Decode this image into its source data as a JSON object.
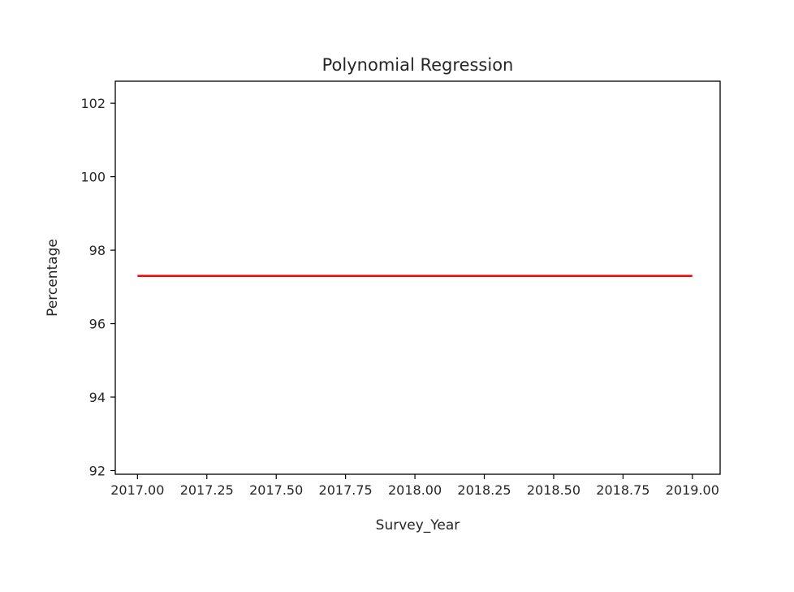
{
  "chart_data": {
    "type": "line",
    "title": "Polynomial Regression",
    "xlabel": "Survey_Year",
    "ylabel": "Percentage",
    "xlim": [
      2016.92,
      2019.1
    ],
    "ylim": [
      91.9,
      102.6
    ],
    "x_ticks": [
      2017.0,
      2017.25,
      2017.5,
      2017.75,
      2018.0,
      2018.25,
      2018.5,
      2018.75,
      2019.0
    ],
    "x_tick_labels": [
      "2017.00",
      "2017.25",
      "2017.50",
      "2017.75",
      "2018.00",
      "2018.25",
      "2018.50",
      "2018.75",
      "2019.00"
    ],
    "y_ticks": [
      92,
      94,
      96,
      98,
      100,
      102
    ],
    "y_tick_labels": [
      "92",
      "94",
      "96",
      "98",
      "100",
      "102"
    ],
    "grid": false,
    "series": [
      {
        "color": "#ff0000",
        "x": [
          2017.0,
          2019.0
        ],
        "y": [
          97.3,
          97.3
        ]
      }
    ]
  }
}
